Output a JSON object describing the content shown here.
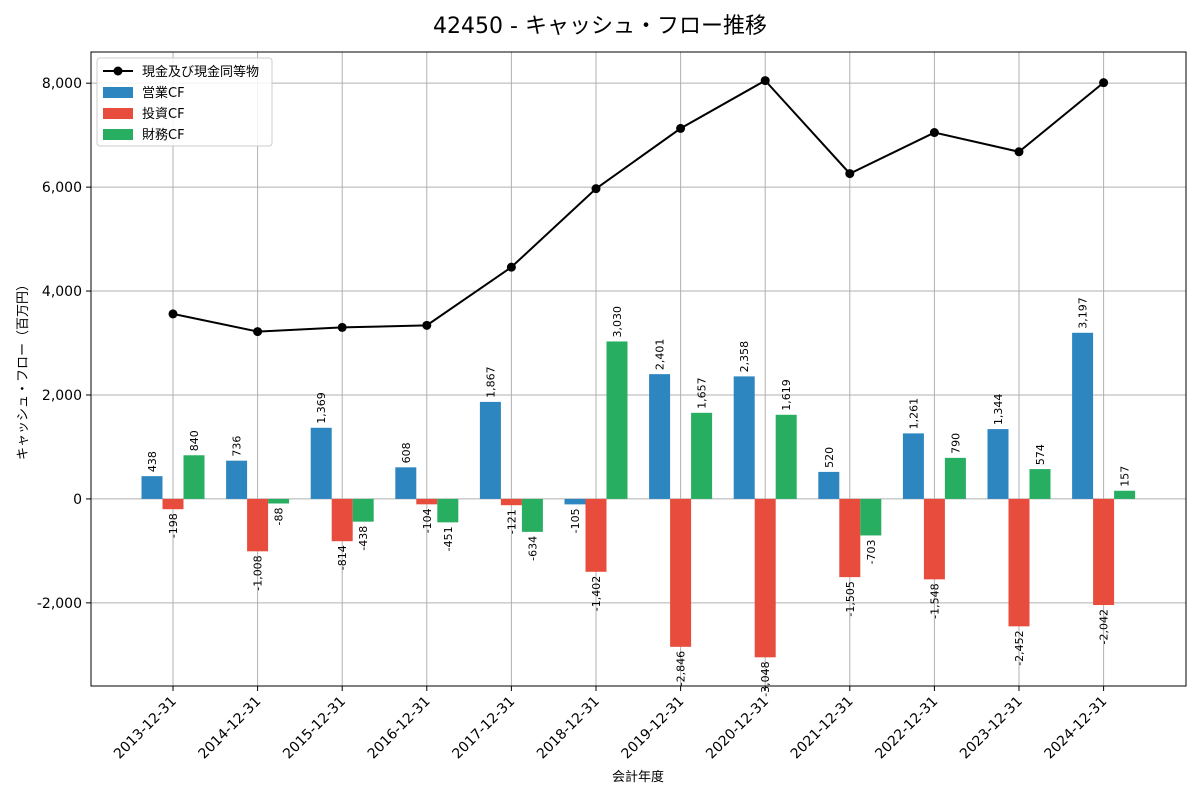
{
  "chart_data": {
    "type": "bar",
    "title": "42450 - キャッシュ・フロー推移",
    "xlabel": "会計年度",
    "ylabel": "キャッシュ・フロー（百万円）",
    "ylim": [
      -3600,
      8600
    ],
    "yticks": [
      -2000,
      0,
      2000,
      4000,
      6000,
      8000
    ],
    "ytick_labels": [
      "-2,000",
      "0",
      "2,000",
      "4,000",
      "6,000",
      "8,000"
    ],
    "grid": true,
    "legend_position": "top-left",
    "categories": [
      "2013-12-31",
      "2014-12-31",
      "2015-12-31",
      "2016-12-31",
      "2017-12-31",
      "2018-12-31",
      "2019-12-31",
      "2020-12-31",
      "2021-12-31",
      "2022-12-31",
      "2023-12-31",
      "2024-12-31"
    ],
    "series": [
      {
        "name": "営業CF",
        "kind": "bar",
        "color": "#2e86c1",
        "values": [
          438,
          736,
          1369,
          608,
          1867,
          -105,
          2401,
          2358,
          520,
          1261,
          1344,
          3197
        ],
        "labels": [
          "438",
          "736",
          "1,369",
          "608",
          "1,867",
          "-105",
          "2,401",
          "2,358",
          "520",
          "1,261",
          "1,344",
          "3,197"
        ]
      },
      {
        "name": "投資CF",
        "kind": "bar",
        "color": "#e74c3c",
        "values": [
          -198,
          -1008,
          -814,
          -104,
          -121,
          -1402,
          -2846,
          -3048,
          -1505,
          -1548,
          -2452,
          -2042
        ],
        "labels": [
          "-198",
          "-1,008",
          "-814",
          "-104",
          "-121",
          "-1,402",
          "-2,846",
          "-3,048",
          "-1,505",
          "-1,548",
          "-2,452",
          "-2,042"
        ]
      },
      {
        "name": "財務CF",
        "kind": "bar",
        "color": "#27ae60",
        "values": [
          840,
          -88,
          -438,
          -451,
          -634,
          3030,
          1657,
          1619,
          -703,
          790,
          574,
          157
        ],
        "labels": [
          "840",
          "-88",
          "-438",
          "-451",
          "-634",
          "3,030",
          "1,657",
          "1,619",
          "-703",
          "790",
          "574",
          "157"
        ]
      },
      {
        "name": "現金及び現金同等物",
        "kind": "line",
        "color": "#000000",
        "values": [
          3560,
          3220,
          3300,
          3340,
          4460,
          5970,
          7130,
          8050,
          6260,
          7050,
          6680,
          8010
        ]
      }
    ]
  }
}
